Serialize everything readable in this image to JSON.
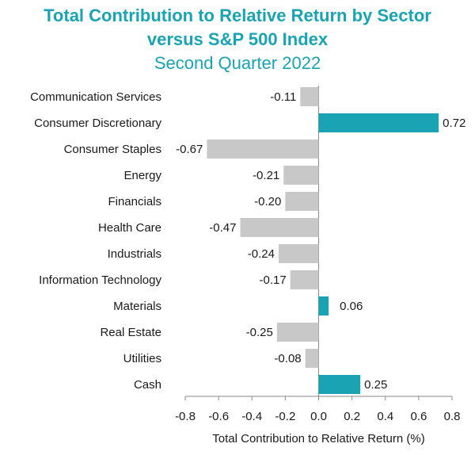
{
  "chart_data": {
    "type": "bar",
    "orientation": "horizontal",
    "title": "Total Contribution to Relative Return by Sector",
    "title_line2": "versus S&P 500 Index",
    "subtitle": "Second Quarter 2022",
    "xlabel": "Total Contribution to Relative Return (%)",
    "xlim": [
      -0.8,
      0.8
    ],
    "xticks": [
      "-0.8",
      "-0.6",
      "-0.4",
      "-0.2",
      "0.0",
      "0.2",
      "0.4",
      "0.6",
      "0.8"
    ],
    "categories": [
      "Communication Services",
      "Consumer Discretionary",
      "Consumer Staples",
      "Energy",
      "Financials",
      "Health Care",
      "Industrials",
      "Information Technology",
      "Materials",
      "Real Estate",
      "Utilities",
      "Cash"
    ],
    "values": [
      -0.11,
      0.72,
      -0.67,
      -0.21,
      -0.2,
      -0.47,
      -0.24,
      -0.17,
      0.06,
      -0.25,
      -0.08,
      0.25
    ],
    "value_labels": [
      "-0.11",
      "0.72",
      "-0.67",
      "-0.21",
      "-0.20",
      "-0.47",
      "-0.24",
      "-0.17",
      "0.06",
      "-0.25",
      "-0.08",
      "0.25"
    ],
    "colors": {
      "positive": "#1aa3b2",
      "negative": "#c8c8c8",
      "title": "#1aa3b2"
    },
    "grid": false,
    "legend": "none"
  }
}
